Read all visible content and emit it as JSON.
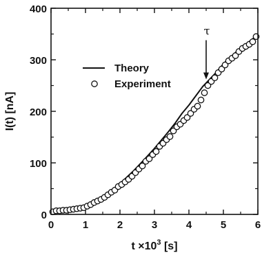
{
  "chart_data": {
    "type": "line",
    "xlabel_main": "t ×10",
    "xlabel_exp": "3",
    "xlabel_unit": " [s]",
    "ylabel": "I(t) [nA]",
    "xlim": [
      0,
      6
    ],
    "ylim": [
      0,
      400
    ],
    "x_ticks": [
      "0",
      "1",
      "2",
      "3",
      "4",
      "5",
      "6"
    ],
    "y_ticks": [
      "0",
      "100",
      "200",
      "300",
      "400"
    ],
    "grid": false,
    "legend_position": "upper-left",
    "annotation": {
      "label": "τ",
      "x": 4.5,
      "y_top": 338,
      "y_bottom": 262
    },
    "series": [
      {
        "name": "Theory",
        "style": "line",
        "color": "#111111",
        "x": [
          0.0,
          0.3,
          0.6,
          0.9,
          1.2,
          1.5,
          1.8,
          2.1,
          2.4,
          2.7,
          3.0,
          3.2,
          3.4,
          3.6,
          3.8,
          4.0,
          4.2,
          4.4,
          4.6,
          4.8,
          5.0,
          5.2,
          5.4,
          5.6,
          5.8,
          5.95
        ],
        "y": [
          3,
          3,
          5,
          10,
          20,
          33,
          49,
          66,
          85,
          106,
          128,
          144,
          160,
          177,
          196,
          212,
          230,
          248,
          262,
          276,
          292,
          305,
          317,
          327,
          338,
          346
        ]
      },
      {
        "name": "Experiment",
        "style": "scatter",
        "color": "#111111",
        "x": [
          0.05,
          0.15,
          0.25,
          0.35,
          0.45,
          0.55,
          0.65,
          0.75,
          0.85,
          0.95,
          1.05,
          1.15,
          1.25,
          1.35,
          1.45,
          1.55,
          1.65,
          1.75,
          1.85,
          1.95,
          2.05,
          2.15,
          2.25,
          2.35,
          2.45,
          2.55,
          2.65,
          2.75,
          2.85,
          2.95,
          3.05,
          3.15,
          3.25,
          3.35,
          3.45,
          3.55,
          3.65,
          3.75,
          3.85,
          3.95,
          4.05,
          4.15,
          4.25,
          4.35,
          4.45,
          4.55,
          4.65,
          4.75,
          4.85,
          4.95,
          5.05,
          5.15,
          5.25,
          5.35,
          5.45,
          5.55,
          5.65,
          5.75,
          5.85,
          5.95
        ],
        "y": [
          5,
          7,
          7,
          8,
          8,
          9,
          10,
          11,
          12,
          13,
          16,
          19,
          23,
          26,
          29,
          33,
          38,
          43,
          47,
          54,
          58,
          63,
          68,
          74,
          81,
          88,
          94,
          103,
          108,
          116,
          122,
          132,
          138,
          145,
          151,
          162,
          170,
          175,
          182,
          188,
          196,
          204,
          210,
          222,
          236,
          250,
          258,
          265,
          275,
          282,
          290,
          298,
          303,
          308,
          316,
          322,
          326,
          330,
          335,
          345
        ]
      }
    ]
  }
}
